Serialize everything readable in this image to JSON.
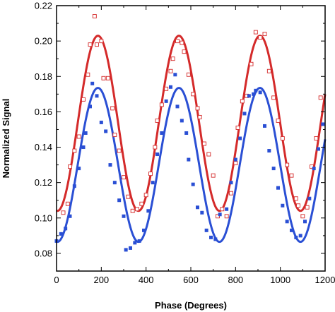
{
  "chart_data": {
    "type": "scatter",
    "title": "",
    "xlabel": "Phase (Degrees)",
    "ylabel": "Normalized Signal",
    "xlim": [
      0,
      1200
    ],
    "ylim": [
      0.07,
      0.22
    ],
    "x_ticks": [
      "0",
      "200",
      "400",
      "600",
      "800",
      "1000",
      "1200"
    ],
    "y_ticks": [
      "0.08",
      "0.10",
      "0.12",
      "0.14",
      "0.16",
      "0.18",
      "0.20",
      "0.22"
    ],
    "grid": false,
    "legend": "none",
    "series": [
      {
        "color": "#d42a2a",
        "marker": "open-square",
        "fit": {
          "mean": 0.1535,
          "amplitude": 0.0495,
          "period_deg": 362,
          "peak_at_deg": 185
        },
        "x": [
          30,
          50,
          60,
          80,
          100,
          120,
          140,
          150,
          170,
          180,
          200,
          210,
          230,
          250,
          260,
          280,
          300,
          320,
          340,
          360,
          380,
          400,
          420,
          440,
          450,
          470,
          490,
          510,
          520,
          540,
          560,
          570,
          590,
          610,
          630,
          640,
          660,
          680,
          700,
          720,
          740,
          760,
          780,
          800,
          810,
          830,
          850,
          870,
          890,
          910,
          930,
          950,
          970,
          990,
          1010,
          1030,
          1050,
          1070,
          1080,
          1100,
          1120,
          1140,
          1160,
          1180
        ],
        "y": [
          0.103,
          0.108,
          0.129,
          0.138,
          0.146,
          0.167,
          0.181,
          0.198,
          0.214,
          0.198,
          0.2,
          0.179,
          0.179,
          0.162,
          0.147,
          0.138,
          0.123,
          0.112,
          0.104,
          0.105,
          0.108,
          0.113,
          0.125,
          0.14,
          0.155,
          0.164,
          0.173,
          0.183,
          0.19,
          0.2,
          0.199,
          0.194,
          0.181,
          0.17,
          0.162,
          0.157,
          0.142,
          0.136,
          0.124,
          0.101,
          0.105,
          0.101,
          0.114,
          0.131,
          0.151,
          0.166,
          0.169,
          0.187,
          0.205,
          0.202,
          0.204,
          0.183,
          0.168,
          0.155,
          0.145,
          0.13,
          0.124,
          0.111,
          0.107,
          0.101,
          0.106,
          0.129,
          0.145,
          0.168
        ]
      },
      {
        "color": "#2a4fd4",
        "marker": "filled-square",
        "fit": {
          "mean": 0.13,
          "amplitude": 0.0435,
          "period_deg": 362,
          "peak_at_deg": 185
        },
        "x": [
          0,
          20,
          40,
          60,
          80,
          100,
          120,
          130,
          150,
          160,
          180,
          200,
          220,
          240,
          260,
          280,
          300,
          310,
          330,
          350,
          370,
          390,
          410,
          430,
          450,
          470,
          490,
          510,
          530,
          540,
          560,
          580,
          590,
          610,
          630,
          650,
          670,
          690,
          710,
          730,
          760,
          780,
          800,
          820,
          840,
          860,
          880,
          890,
          910,
          930,
          950,
          970,
          990,
          1010,
          1030,
          1050,
          1070,
          1090,
          1110,
          1130,
          1150,
          1170,
          1190
        ],
        "y": [
          0.087,
          0.091,
          0.094,
          0.101,
          0.118,
          0.128,
          0.14,
          0.148,
          0.163,
          0.176,
          0.169,
          0.154,
          0.149,
          0.13,
          0.12,
          0.11,
          0.101,
          0.082,
          0.083,
          0.086,
          0.087,
          0.093,
          0.104,
          0.12,
          0.136,
          0.148,
          0.166,
          0.174,
          0.181,
          0.163,
          0.155,
          0.148,
          0.133,
          0.119,
          0.106,
          0.103,
          0.093,
          0.089,
          0.088,
          0.102,
          0.105,
          0.12,
          0.133,
          0.145,
          0.159,
          0.169,
          0.17,
          0.172,
          0.171,
          0.152,
          0.138,
          0.128,
          0.117,
          0.107,
          0.098,
          0.093,
          0.089,
          0.09,
          0.098,
          0.111,
          0.128,
          0.139,
          0.153
        ]
      }
    ]
  }
}
